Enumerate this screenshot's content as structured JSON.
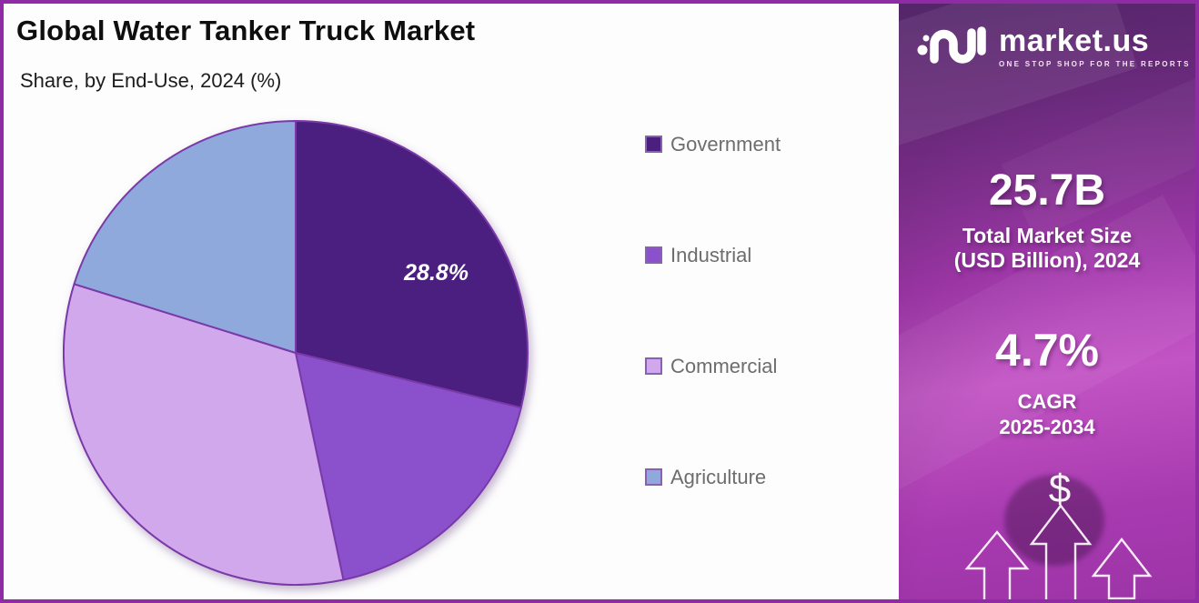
{
  "header": {
    "title": "Global Water Tanker Truck Market",
    "subtitle": "Share, by End-Use, 2024 (%)"
  },
  "chart_data": {
    "type": "pie",
    "title": "Global Water Tanker Truck Market",
    "subtitle": "Share, by End-Use, 2024 (%)",
    "unit": "%",
    "start_angle_deg": 0,
    "direction": "clockwise",
    "legend_position": "right",
    "categories": [
      "Government",
      "Industrial",
      "Commercial",
      "Agriculture"
    ],
    "values": [
      28.8,
      17.9,
      33.1,
      20.2
    ],
    "stroke_color": "#7A39A8",
    "slices": [
      {
        "name": "Government",
        "value": 28.8,
        "color": "#4A1F80",
        "data_label": "28.8%",
        "label_angle_deg": 60,
        "label_radius_frac": 0.7
      },
      {
        "name": "Industrial",
        "value": 17.9,
        "color": "#8B51CD",
        "data_label": ""
      },
      {
        "name": "Commercial",
        "value": 33.1,
        "color": "#D1A8EC",
        "data_label": ""
      },
      {
        "name": "Agriculture",
        "value": 20.2,
        "color": "#8FA9DC",
        "data_label": ""
      }
    ]
  },
  "sidebar": {
    "logo": {
      "brand": "market.us",
      "tagline": "ONE STOP SHOP FOR THE REPORTS"
    },
    "market_size": {
      "value": "25.7B",
      "label_line1": "Total Market Size",
      "label_line2": "(USD Billion), 2024"
    },
    "cagr": {
      "value": "4.7%",
      "label_line1": "CAGR",
      "label_line2": "2025-2034"
    },
    "dollar_symbol": "$"
  }
}
